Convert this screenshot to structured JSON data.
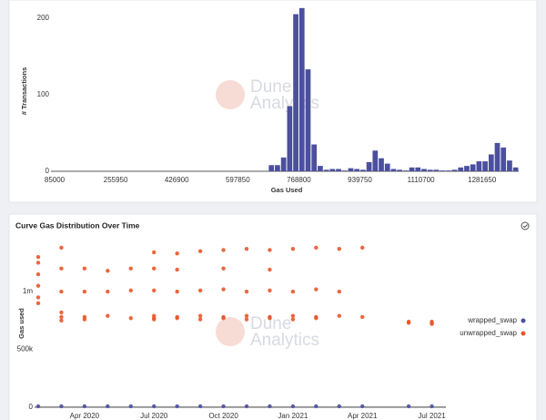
{
  "chart_data": [
    {
      "type": "histogram",
      "x_label": "Gas Used",
      "y_label": "# Transactions",
      "color": "#4b4f9e",
      "watermark": [
        "Dune",
        "Analytics"
      ],
      "bins": [
        85000,
        102095,
        119190,
        136285,
        153380,
        170475,
        187570,
        204665,
        221760,
        238855,
        255950,
        273045,
        290140,
        307235,
        324330,
        341425,
        358520,
        375615,
        392710,
        409805,
        426900,
        443995,
        461090,
        478185,
        495280,
        512375,
        529470,
        546565,
        563660,
        580755,
        597850,
        614945,
        632040,
        649135,
        666230,
        683325,
        700420,
        717515,
        734610,
        751705,
        768800,
        785895,
        802990,
        820085,
        837180,
        854275,
        871370,
        888465,
        905560,
        922655,
        939750,
        956845,
        973940,
        991035,
        1008130,
        1025225,
        1042320,
        1059415,
        1076510,
        1093605,
        1110700,
        1127795,
        1144890,
        1161985,
        1179080,
        1196175,
        1213270,
        1230365,
        1247460,
        1264555,
        1281650,
        1298745,
        1315840,
        1332935,
        1350030,
        1367125,
        1384220
      ],
      "values": [
        0,
        0,
        0,
        0,
        0,
        0,
        0,
        0,
        0,
        0,
        0,
        0,
        0,
        0,
        0,
        0,
        0,
        0,
        0,
        0,
        0,
        0,
        0,
        0,
        0,
        0,
        0,
        0,
        0,
        0,
        0,
        0,
        0,
        0,
        0,
        8,
        8,
        18,
        85,
        205,
        213,
        133,
        35,
        7,
        2,
        3,
        3,
        1,
        4,
        3,
        2,
        12,
        27,
        17,
        10,
        3,
        2,
        1,
        5,
        5,
        3,
        2,
        2,
        1,
        1,
        2,
        5,
        7,
        9,
        13,
        13,
        22,
        37,
        31,
        14,
        5
      ],
      "xlim": [
        85000,
        1384220
      ],
      "xticks": [
        85000,
        255950,
        426900,
        597850,
        768800,
        939750,
        1110700,
        1281650
      ],
      "ylim": [
        0,
        214
      ],
      "yticks": [
        0,
        100,
        200
      ],
      "grid": false
    },
    {
      "type": "scatter",
      "title": "Curve Gas Distribution Over Time",
      "y_label": "Gas used",
      "legend": "right",
      "watermark": [
        "Dune",
        "Analytics"
      ],
      "xlim": [
        "2020-02",
        "2021-08"
      ],
      "xticks": [
        {
          "value": "2020-04",
          "label": "Apr 2020"
        },
        {
          "value": "2020-07",
          "label": "Jul 2020"
        },
        {
          "value": "2020-10",
          "label": "Oct 2020"
        },
        {
          "value": "2021-01",
          "label": "Jan 2021"
        },
        {
          "value": "2021-04",
          "label": "Apr 2021"
        },
        {
          "value": "2021-07",
          "label": "Jul 2021"
        }
      ],
      "ylim": [
        -40000,
        1450000
      ],
      "yticks": [
        0,
        {
          "value": 500000,
          "label": "500k"
        },
        {
          "value": 1000000,
          "label": "1m"
        }
      ],
      "grid": false,
      "series": [
        {
          "name": "wrapped_swap",
          "color": "#4b4f9e",
          "x": [
            "2020-02",
            "2020-03",
            "2020-04",
            "2020-05",
            "2020-06",
            "2020-07",
            "2020-08",
            "2020-09",
            "2020-10",
            "2020-11",
            "2020-12",
            "2021-01",
            "2021-02",
            "2021-03",
            "2021-04",
            "2021-06",
            "2021-07"
          ],
          "values": [
            8000,
            8000,
            8000,
            8000,
            8000,
            8000,
            8000,
            8000,
            8000,
            8000,
            8000,
            8000,
            8000,
            8000,
            8000,
            8000,
            8000
          ]
        },
        {
          "name": "unwrapped_swap",
          "color": "#e8562a",
          "x": [
            "2020-02",
            "2020-02",
            "2020-02",
            "2020-02",
            "2020-02",
            "2020-02",
            "2020-03",
            "2020-03",
            "2020-03",
            "2020-03",
            "2020-03",
            "2020-03",
            "2020-04",
            "2020-04",
            "2020-04",
            "2020-04",
            "2020-05",
            "2020-05",
            "2020-05",
            "2020-06",
            "2020-06",
            "2020-06",
            "2020-07",
            "2020-07",
            "2020-07",
            "2020-07",
            "2020-07",
            "2020-07",
            "2020-08",
            "2020-08",
            "2020-08",
            "2020-08",
            "2020-08",
            "2020-09",
            "2020-09",
            "2020-09",
            "2020-09",
            "2020-10",
            "2020-10",
            "2020-10",
            "2020-10",
            "2020-10",
            "2020-11",
            "2020-11",
            "2020-11",
            "2020-11",
            "2020-12",
            "2020-12",
            "2020-12",
            "2020-12",
            "2020-12",
            "2021-01",
            "2021-01",
            "2021-01",
            "2021-01",
            "2021-02",
            "2021-02",
            "2021-02",
            "2021-02",
            "2021-03",
            "2021-03",
            "2021-03",
            "2021-04",
            "2021-04",
            "2021-06",
            "2021-06",
            "2021-07",
            "2021-07",
            "2021-07"
          ],
          "values": [
            1300000,
            1250000,
            1150000,
            1050000,
            950000,
            900000,
            1380000,
            1200000,
            1000000,
            780000,
            750000,
            820000,
            1000000,
            780000,
            760000,
            1200000,
            1000000,
            790000,
            1180000,
            770000,
            1010000,
            1200000,
            1340000,
            1200000,
            1010000,
            790000,
            770000,
            760000,
            1330000,
            1000000,
            780000,
            770000,
            1190000,
            1350000,
            1010000,
            790000,
            760000,
            1360000,
            1020000,
            780000,
            770000,
            1200000,
            1370000,
            1000000,
            790000,
            760000,
            1360000,
            1010000,
            780000,
            770000,
            1190000,
            1370000,
            1000000,
            790000,
            760000,
            1380000,
            1020000,
            780000,
            770000,
            1370000,
            790000,
            1000000,
            1380000,
            780000,
            740000,
            730000,
            740000,
            730000,
            720000
          ]
        }
      ]
    }
  ]
}
